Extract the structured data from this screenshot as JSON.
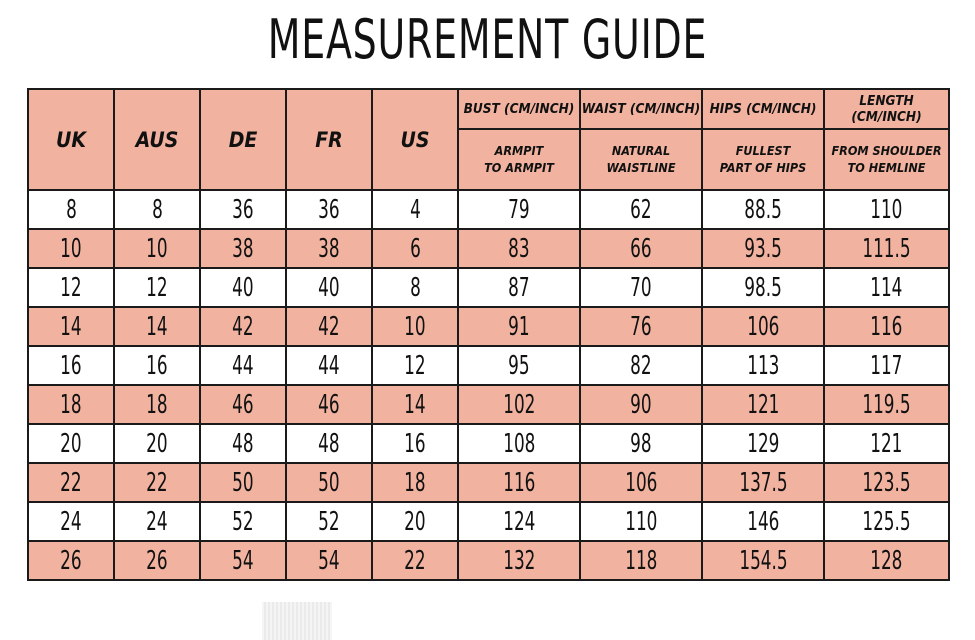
{
  "title": "MEASUREMENT GUIDE",
  "headers": {
    "uk": "UK",
    "aus": "AUS",
    "de": "DE",
    "fr": "FR",
    "us": "US",
    "bust": "BUST (CM/INCH)",
    "waist": "WAIST (CM/INCH)",
    "hips": "HIPS (CM/INCH)",
    "length": "LENGTH (CM/INCH)",
    "bust_sub": "ARMPIT\nTO ARMPIT",
    "waist_sub": "NATURAL\nWAISTLINE",
    "hips_sub": "FULLEST\nPART OF HIPS",
    "length_sub": "FROM SHOULDER\nTO HEMLINE"
  },
  "rows": [
    [
      "8",
      "8",
      "36",
      "36",
      "4",
      "79",
      "62",
      "88.5",
      "110"
    ],
    [
      "10",
      "10",
      "38",
      "38",
      "6",
      "83",
      "66",
      "93.5",
      "111.5"
    ],
    [
      "12",
      "12",
      "40",
      "40",
      "8",
      "87",
      "70",
      "98.5",
      "114"
    ],
    [
      "14",
      "14",
      "42",
      "42",
      "10",
      "91",
      "76",
      "106",
      "116"
    ],
    [
      "16",
      "16",
      "44",
      "44",
      "12",
      "95",
      "82",
      "113",
      "117"
    ],
    [
      "18",
      "18",
      "46",
      "46",
      "14",
      "102",
      "90",
      "121",
      "119.5"
    ],
    [
      "20",
      "20",
      "48",
      "48",
      "16",
      "108",
      "98",
      "129",
      "121"
    ],
    [
      "22",
      "22",
      "50",
      "50",
      "18",
      "116",
      "106",
      "137.5",
      "123.5"
    ],
    [
      "24",
      "24",
      "52",
      "52",
      "20",
      "124",
      "110",
      "146",
      "125.5"
    ],
    [
      "26",
      "26",
      "54",
      "54",
      "22",
      "132",
      "118",
      "154.5",
      "128"
    ]
  ],
  "colors": {
    "header_fill": "#f1b29f",
    "shade_fill": "#f1b29f",
    "border": "#1a1a1a"
  }
}
